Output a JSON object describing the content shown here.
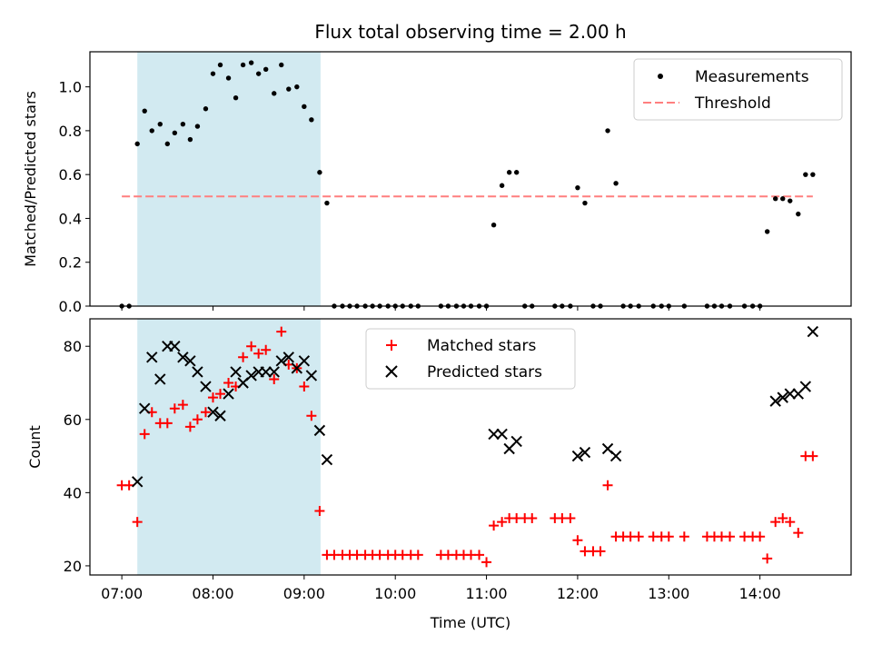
{
  "chart_data": [
    {
      "type": "scatter",
      "title": "Flux total observing time = 2.00 h",
      "ylabel": "Matched/Predicted stars",
      "ylim": [
        0,
        1.16
      ],
      "yticks": [
        0.0,
        0.2,
        0.4,
        0.6,
        0.8,
        1.0
      ],
      "ytick_labels": [
        "0.0",
        "0.2",
        "0.4",
        "0.6",
        "0.8",
        "1.0"
      ],
      "xlim": [
        6.65,
        15.0
      ],
      "highlight_span": [
        7.17,
        9.18
      ],
      "threshold": {
        "value": 0.5,
        "x": [
          7.0,
          14.58
        ]
      },
      "series": [
        {
          "name": "Measurements",
          "x": [
            7.0,
            7.08,
            7.17,
            7.25,
            7.33,
            7.42,
            7.5,
            7.58,
            7.67,
            7.75,
            7.83,
            7.92,
            8.0,
            8.08,
            8.17,
            8.25,
            8.33,
            8.42,
            8.5,
            8.58,
            8.67,
            8.75,
            8.83,
            8.92,
            9.0,
            9.08,
            9.17,
            9.25,
            9.33,
            9.42,
            9.5,
            9.58,
            9.67,
            9.75,
            9.83,
            9.92,
            10.0,
            10.08,
            10.17,
            10.25,
            10.5,
            10.58,
            10.67,
            10.75,
            10.83,
            10.92,
            11.0,
            11.08,
            11.17,
            11.25,
            11.33,
            11.42,
            11.5,
            11.75,
            11.83,
            11.92,
            12.0,
            12.08,
            12.17,
            12.25,
            12.33,
            12.42,
            12.5,
            12.58,
            12.67,
            12.83,
            12.92,
            13.0,
            13.17,
            13.42,
            13.5,
            13.58,
            13.67,
            13.83,
            13.92,
            14.0,
            14.08,
            14.17,
            14.25,
            14.33,
            14.42,
            14.5,
            14.58
          ],
          "y": [
            0,
            0,
            0.74,
            0.89,
            0.8,
            0.83,
            0.74,
            0.79,
            0.83,
            0.76,
            0.82,
            0.9,
            1.06,
            1.1,
            1.04,
            0.95,
            1.1,
            1.11,
            1.06,
            1.08,
            0.97,
            1.1,
            0.99,
            1.0,
            0.91,
            0.85,
            0.61,
            0.47,
            0,
            0,
            0,
            0,
            0,
            0,
            0,
            0,
            0,
            0,
            0,
            0,
            0,
            0,
            0,
            0,
            0,
            0,
            0,
            0.37,
            0.55,
            0.61,
            0.61,
            0,
            0,
            0,
            0,
            0,
            0.54,
            0.47,
            0,
            0,
            0.8,
            0.56,
            0,
            0,
            0,
            0,
            0,
            0,
            0,
            0,
            0,
            0,
            0,
            0,
            0,
            0,
            0.34,
            0.49,
            0.49,
            0.48,
            0.42,
            0.6,
            0.6
          ]
        },
        {
          "name": "Threshold",
          "x": [
            7.0,
            14.58
          ],
          "y": [
            0.5,
            0.5
          ]
        }
      ],
      "legend": [
        "Measurements",
        "Threshold"
      ],
      "legend_position": "top-right"
    },
    {
      "type": "scatter",
      "xlabel": "Time (UTC)",
      "ylabel": "Count",
      "ylim": [
        17.5,
        87.5
      ],
      "yticks": [
        20,
        40,
        60,
        80
      ],
      "ytick_labels": [
        "20",
        "40",
        "60",
        "80"
      ],
      "xlim": [
        6.65,
        15.0
      ],
      "xticks": [
        7,
        8,
        9,
        10,
        11,
        12,
        13,
        14
      ],
      "xtick_labels": [
        "07:00",
        "08:00",
        "09:00",
        "10:00",
        "11:00",
        "12:00",
        "13:00",
        "14:00"
      ],
      "highlight_span": [
        7.17,
        9.18
      ],
      "series": [
        {
          "name": "Matched stars",
          "x": [
            7.0,
            7.08,
            7.17,
            7.25,
            7.33,
            7.42,
            7.5,
            7.58,
            7.67,
            7.75,
            7.83,
            7.92,
            8.0,
            8.08,
            8.17,
            8.25,
            8.33,
            8.42,
            8.5,
            8.58,
            8.67,
            8.75,
            8.83,
            8.92,
            9.0,
            9.08,
            9.17,
            9.25,
            9.33,
            9.42,
            9.5,
            9.58,
            9.67,
            9.75,
            9.83,
            9.92,
            10.0,
            10.08,
            10.17,
            10.25,
            10.5,
            10.58,
            10.67,
            10.75,
            10.83,
            10.92,
            11.0,
            11.08,
            11.17,
            11.25,
            11.33,
            11.42,
            11.5,
            11.75,
            11.83,
            11.92,
            12.0,
            12.08,
            12.17,
            12.25,
            12.33,
            12.42,
            12.5,
            12.58,
            12.67,
            12.83,
            12.92,
            13.0,
            13.17,
            13.42,
            13.5,
            13.58,
            13.67,
            13.83,
            13.92,
            14.0,
            14.08,
            14.17,
            14.25,
            14.33,
            14.42,
            14.5,
            14.58
          ],
          "y": [
            42,
            42,
            32,
            56,
            62,
            59,
            59,
            63,
            64,
            58,
            60,
            62,
            66,
            67,
            70,
            69,
            77,
            80,
            78,
            79,
            71,
            84,
            75,
            74,
            69,
            61,
            35,
            23,
            23,
            23,
            23,
            23,
            23,
            23,
            23,
            23,
            23,
            23,
            23,
            23,
            23,
            23,
            23,
            23,
            23,
            23,
            21,
            31,
            32,
            33,
            33,
            33,
            33,
            33,
            33,
            33,
            27,
            24,
            24,
            24,
            42,
            28,
            28,
            28,
            28,
            28,
            28,
            28,
            28,
            28,
            28,
            28,
            28,
            28,
            28,
            28,
            22,
            32,
            33,
            32,
            29,
            50,
            50
          ]
        },
        {
          "name": "Predicted stars",
          "x": [
            7.17,
            7.25,
            7.33,
            7.42,
            7.5,
            7.58,
            7.67,
            7.75,
            7.83,
            7.92,
            8.0,
            8.08,
            8.17,
            8.25,
            8.33,
            8.42,
            8.5,
            8.58,
            8.67,
            8.75,
            8.83,
            8.92,
            9.0,
            9.08,
            9.17,
            9.25,
            11.08,
            11.17,
            11.25,
            11.33,
            12.0,
            12.08,
            12.33,
            12.42,
            14.17,
            14.25,
            14.33,
            14.42,
            14.5,
            14.58
          ],
          "y": [
            43,
            63,
            77,
            71,
            80,
            80,
            77,
            76,
            73,
            69,
            62,
            61,
            67,
            73,
            70,
            72,
            73,
            73,
            73,
            76,
            77,
            74,
            76,
            72,
            57,
            49,
            56,
            56,
            52,
            54,
            50,
            51,
            52,
            50,
            65,
            66,
            67,
            67,
            69,
            84
          ]
        }
      ],
      "legend": [
        "Matched stars",
        "Predicted stars"
      ],
      "legend_position": "top-center",
      "colors": {
        "matched": "#ff0000",
        "predicted": "#000000",
        "threshold": "#ff7f7f",
        "span": "#add8e6"
      }
    }
  ]
}
